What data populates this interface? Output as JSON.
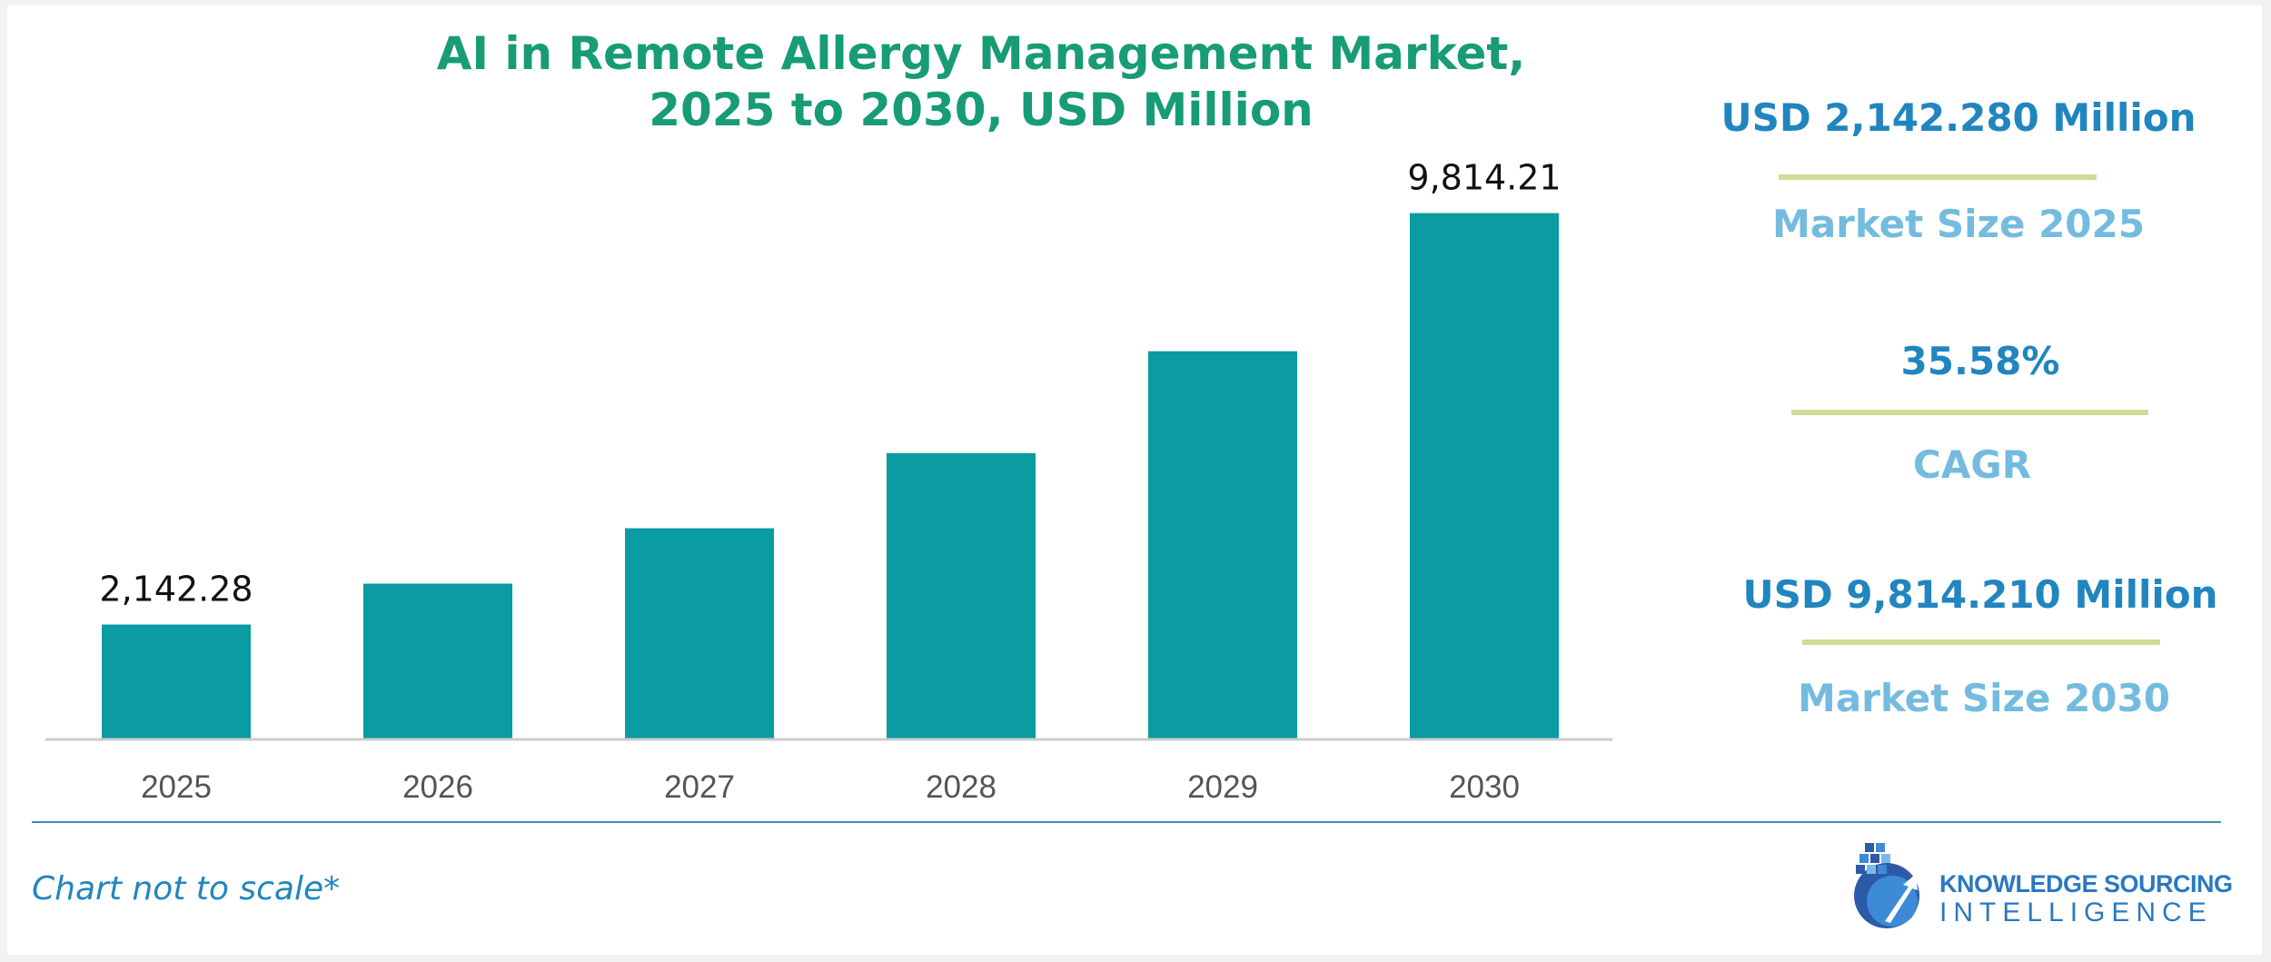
{
  "chart_data": {
    "type": "bar",
    "title_lines": [
      "AI in Remote Allergy Management Market,",
      "2025 to 2030, USD Million"
    ],
    "categories": [
      "2025",
      "2026",
      "2027",
      "2028",
      "2029",
      "2030"
    ],
    "values": [
      2142.28,
      2904.49,
      3937.86,
      5339.08,
      7238.88,
      9814.21
    ],
    "data_labels": [
      "2,142.28",
      "",
      "",
      "",
      "",
      "9,814.21"
    ],
    "ylim": [
      0,
      10400
    ],
    "grid": false,
    "colors": {
      "bar": "#0a9ca1",
      "axis": "#cccccc",
      "tick_label": "#555555"
    }
  },
  "stats": [
    {
      "value": "USD 2,142.280 Million",
      "label": "Market Size 2025"
    },
    {
      "value": "35.58%",
      "label": "CAGR"
    },
    {
      "value": "USD 9,814.210 Million",
      "label": "Market Size 2030"
    }
  ],
  "footnote": "Chart not to scale*",
  "logo": {
    "line1": "KNOWLEDGE SOURCING",
    "line2": "INTELLIGENCE"
  },
  "colors": {
    "title": "#179c76",
    "stat_value": "#2185bf",
    "stat_label": "#74bbe0",
    "stat_divider": "#cddc96"
  }
}
